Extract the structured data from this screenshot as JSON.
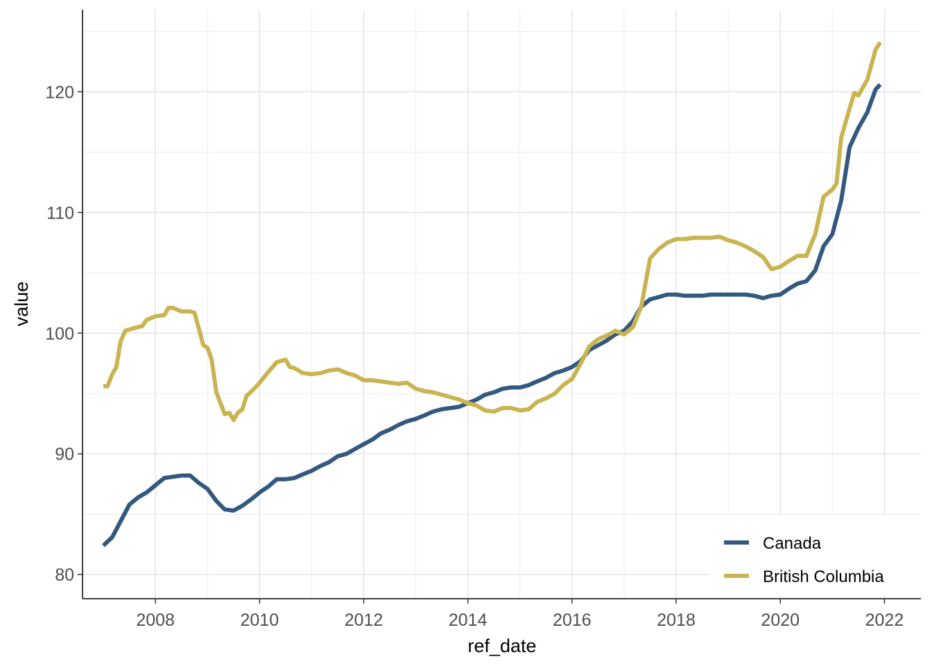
{
  "chart_data": {
    "type": "line",
    "title": "",
    "xlabel": "ref_date",
    "ylabel": "value",
    "xlim": [
      2006.6,
      2022.7
    ],
    "ylim": [
      78,
      126.8
    ],
    "x_ticks": [
      2008,
      2010,
      2012,
      2014,
      2016,
      2018,
      2020,
      2022
    ],
    "x_tick_labels": [
      "2008",
      "2010",
      "2012",
      "2014",
      "2016",
      "2018",
      "2020",
      "2022"
    ],
    "y_ticks": [
      80,
      90,
      100,
      110,
      120
    ],
    "y_tick_labels": [
      "80",
      "90",
      "100",
      "110",
      "120"
    ],
    "grid": true,
    "legend_position": "bottom-right",
    "series": [
      {
        "name": "Canada",
        "color": "#34597f",
        "points": [
          [
            2007.0,
            82.4
          ],
          [
            2007.17,
            83.1
          ],
          [
            2007.33,
            84.4
          ],
          [
            2007.5,
            85.8
          ],
          [
            2007.67,
            86.4
          ],
          [
            2007.83,
            86.8
          ],
          [
            2008.0,
            87.4
          ],
          [
            2008.17,
            88.0
          ],
          [
            2008.33,
            88.1
          ],
          [
            2008.5,
            88.2
          ],
          [
            2008.67,
            88.2
          ],
          [
            2008.83,
            87.6
          ],
          [
            2009.0,
            87.1
          ],
          [
            2009.17,
            86.1
          ],
          [
            2009.33,
            85.4
          ],
          [
            2009.5,
            85.3
          ],
          [
            2009.67,
            85.7
          ],
          [
            2009.83,
            86.2
          ],
          [
            2010.0,
            86.8
          ],
          [
            2010.17,
            87.3
          ],
          [
            2010.33,
            87.9
          ],
          [
            2010.5,
            87.9
          ],
          [
            2010.67,
            88.0
          ],
          [
            2010.83,
            88.3
          ],
          [
            2011.0,
            88.6
          ],
          [
            2011.17,
            89.0
          ],
          [
            2011.33,
            89.3
          ],
          [
            2011.5,
            89.8
          ],
          [
            2011.67,
            90.0
          ],
          [
            2011.83,
            90.4
          ],
          [
            2012.0,
            90.8
          ],
          [
            2012.17,
            91.2
          ],
          [
            2012.33,
            91.7
          ],
          [
            2012.5,
            92.0
          ],
          [
            2012.67,
            92.4
          ],
          [
            2012.83,
            92.7
          ],
          [
            2013.0,
            92.9
          ],
          [
            2013.17,
            93.2
          ],
          [
            2013.33,
            93.5
          ],
          [
            2013.5,
            93.7
          ],
          [
            2013.67,
            93.8
          ],
          [
            2013.83,
            93.9
          ],
          [
            2014.0,
            94.2
          ],
          [
            2014.17,
            94.5
          ],
          [
            2014.33,
            94.9
          ],
          [
            2014.5,
            95.1
          ],
          [
            2014.67,
            95.4
          ],
          [
            2014.83,
            95.5
          ],
          [
            2015.0,
            95.5
          ],
          [
            2015.17,
            95.7
          ],
          [
            2015.33,
            96.0
          ],
          [
            2015.5,
            96.3
          ],
          [
            2015.67,
            96.7
          ],
          [
            2015.83,
            96.9
          ],
          [
            2016.0,
            97.2
          ],
          [
            2016.17,
            97.7
          ],
          [
            2016.33,
            98.6
          ],
          [
            2016.5,
            99.0
          ],
          [
            2016.67,
            99.4
          ],
          [
            2016.83,
            99.9
          ],
          [
            2017.0,
            100.2
          ],
          [
            2017.17,
            101.0
          ],
          [
            2017.33,
            102.2
          ],
          [
            2017.5,
            102.8
          ],
          [
            2017.67,
            103.0
          ],
          [
            2017.83,
            103.2
          ],
          [
            2018.0,
            103.2
          ],
          [
            2018.17,
            103.1
          ],
          [
            2018.33,
            103.1
          ],
          [
            2018.5,
            103.1
          ],
          [
            2018.67,
            103.2
          ],
          [
            2018.83,
            103.2
          ],
          [
            2019.0,
            103.2
          ],
          [
            2019.17,
            103.2
          ],
          [
            2019.33,
            103.2
          ],
          [
            2019.5,
            103.1
          ],
          [
            2019.67,
            102.9
          ],
          [
            2019.83,
            103.1
          ],
          [
            2020.0,
            103.2
          ],
          [
            2020.17,
            103.7
          ],
          [
            2020.33,
            104.1
          ],
          [
            2020.5,
            104.3
          ],
          [
            2020.67,
            105.2
          ],
          [
            2020.83,
            107.2
          ],
          [
            2021.0,
            108.2
          ],
          [
            2021.17,
            111.0
          ],
          [
            2021.33,
            115.4
          ],
          [
            2021.5,
            117.0
          ],
          [
            2021.67,
            118.3
          ],
          [
            2021.83,
            120.2
          ],
          [
            2021.92,
            120.6
          ]
        ]
      },
      {
        "name": "British Columbia",
        "color": "#c9b451",
        "points": [
          [
            2007.0,
            95.6
          ],
          [
            2007.08,
            95.6
          ],
          [
            2007.17,
            96.6
          ],
          [
            2007.25,
            97.2
          ],
          [
            2007.33,
            99.3
          ],
          [
            2007.42,
            100.2
          ],
          [
            2007.58,
            100.4
          ],
          [
            2007.75,
            100.6
          ],
          [
            2007.83,
            101.1
          ],
          [
            2008.0,
            101.4
          ],
          [
            2008.17,
            101.5
          ],
          [
            2008.25,
            102.1
          ],
          [
            2008.33,
            102.1
          ],
          [
            2008.5,
            101.8
          ],
          [
            2008.67,
            101.8
          ],
          [
            2008.75,
            101.7
          ],
          [
            2008.92,
            99.0
          ],
          [
            2009.0,
            98.8
          ],
          [
            2009.08,
            97.8
          ],
          [
            2009.17,
            95.1
          ],
          [
            2009.33,
            93.3
          ],
          [
            2009.42,
            93.4
          ],
          [
            2009.5,
            92.8
          ],
          [
            2009.58,
            93.4
          ],
          [
            2009.67,
            93.7
          ],
          [
            2009.75,
            94.8
          ],
          [
            2009.92,
            95.5
          ],
          [
            2010.0,
            95.9
          ],
          [
            2010.17,
            96.8
          ],
          [
            2010.33,
            97.6
          ],
          [
            2010.5,
            97.8
          ],
          [
            2010.58,
            97.2
          ],
          [
            2010.67,
            97.1
          ],
          [
            2010.83,
            96.7
          ],
          [
            2011.0,
            96.6
          ],
          [
            2011.17,
            96.7
          ],
          [
            2011.33,
            96.9
          ],
          [
            2011.5,
            97.0
          ],
          [
            2011.67,
            96.7
          ],
          [
            2011.83,
            96.5
          ],
          [
            2012.0,
            96.1
          ],
          [
            2012.17,
            96.1
          ],
          [
            2012.33,
            96.0
          ],
          [
            2012.5,
            95.9
          ],
          [
            2012.67,
            95.8
          ],
          [
            2012.83,
            95.9
          ],
          [
            2013.0,
            95.4
          ],
          [
            2013.17,
            95.2
          ],
          [
            2013.33,
            95.1
          ],
          [
            2013.5,
            94.9
          ],
          [
            2013.67,
            94.7
          ],
          [
            2013.83,
            94.5
          ],
          [
            2014.0,
            94.2
          ],
          [
            2014.17,
            94.0
          ],
          [
            2014.33,
            93.6
          ],
          [
            2014.5,
            93.5
          ],
          [
            2014.67,
            93.8
          ],
          [
            2014.83,
            93.8
          ],
          [
            2015.0,
            93.6
          ],
          [
            2015.17,
            93.7
          ],
          [
            2015.33,
            94.3
          ],
          [
            2015.5,
            94.6
          ],
          [
            2015.67,
            95.0
          ],
          [
            2015.83,
            95.7
          ],
          [
            2016.0,
            96.2
          ],
          [
            2016.17,
            97.5
          ],
          [
            2016.33,
            98.9
          ],
          [
            2016.5,
            99.5
          ],
          [
            2016.67,
            99.8
          ],
          [
            2016.83,
            100.2
          ],
          [
            2017.0,
            99.9
          ],
          [
            2017.17,
            100.5
          ],
          [
            2017.33,
            102.2
          ],
          [
            2017.5,
            106.2
          ],
          [
            2017.67,
            107.0
          ],
          [
            2017.83,
            107.5
          ],
          [
            2018.0,
            107.8
          ],
          [
            2018.17,
            107.8
          ],
          [
            2018.33,
            107.9
          ],
          [
            2018.5,
            107.9
          ],
          [
            2018.67,
            107.9
          ],
          [
            2018.83,
            108.0
          ],
          [
            2019.0,
            107.7
          ],
          [
            2019.17,
            107.5
          ],
          [
            2019.33,
            107.2
          ],
          [
            2019.5,
            106.8
          ],
          [
            2019.67,
            106.3
          ],
          [
            2019.83,
            105.3
          ],
          [
            2020.0,
            105.5
          ],
          [
            2020.17,
            106.0
          ],
          [
            2020.33,
            106.4
          ],
          [
            2020.5,
            106.4
          ],
          [
            2020.67,
            108.2
          ],
          [
            2020.83,
            111.3
          ],
          [
            2021.0,
            111.9
          ],
          [
            2021.08,
            112.4
          ],
          [
            2021.17,
            116.2
          ],
          [
            2021.33,
            118.6
          ],
          [
            2021.42,
            119.9
          ],
          [
            2021.5,
            119.7
          ],
          [
            2021.67,
            121.0
          ],
          [
            2021.83,
            123.5
          ],
          [
            2021.92,
            124.1
          ]
        ]
      }
    ]
  }
}
